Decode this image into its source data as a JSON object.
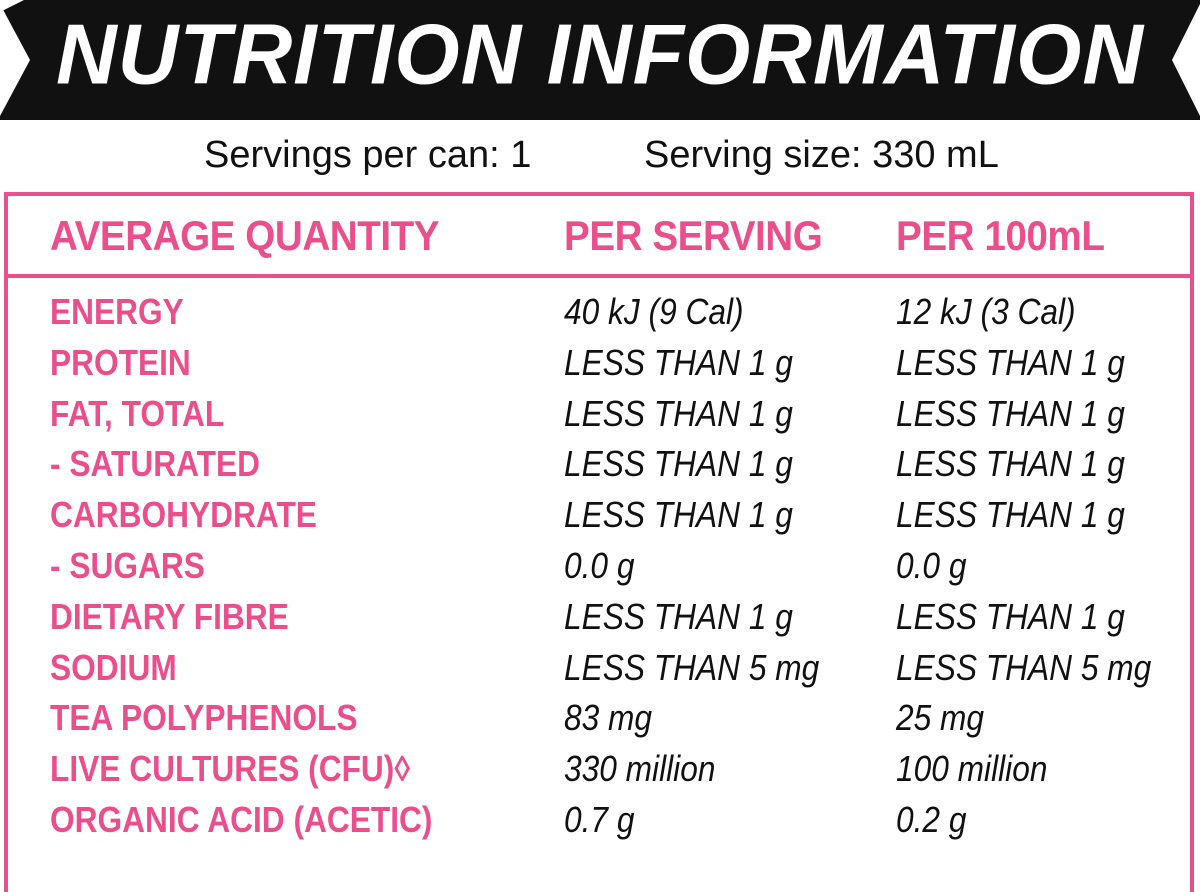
{
  "header": {
    "title": "NUTRITION INFORMATION"
  },
  "servings": {
    "per_pack": "Servings per can: 1",
    "size": "Serving size: 330 mL"
  },
  "colors": {
    "accent": "#ea4f8c",
    "banner": "#111111",
    "text": "#111111"
  },
  "table": {
    "columns": [
      "AVERAGE QUANTITY",
      "PER SERVING",
      "PER 100mL"
    ],
    "rows": [
      {
        "nutrient": "ENERGY",
        "per_serving": "40 kJ (9 Cal)",
        "per_100ml": "12 kJ (3 Cal)"
      },
      {
        "nutrient": "PROTEIN",
        "per_serving": "LESS THAN 1 g",
        "per_100ml": "LESS THAN 1 g"
      },
      {
        "nutrient": "FAT, TOTAL",
        "per_serving": "LESS THAN 1 g",
        "per_100ml": "LESS THAN 1 g"
      },
      {
        "nutrient": "- SATURATED",
        "per_serving": "LESS THAN 1 g",
        "per_100ml": "LESS THAN 1 g"
      },
      {
        "nutrient": "CARBOHYDRATE",
        "per_serving": "LESS THAN 1 g",
        "per_100ml": "LESS THAN 1 g"
      },
      {
        "nutrient": "- SUGARS",
        "per_serving": "0.0 g",
        "per_100ml": "0.0 g"
      },
      {
        "nutrient": "DIETARY FIBRE",
        "per_serving": "LESS THAN 1 g",
        "per_100ml": "LESS THAN 1 g"
      },
      {
        "nutrient": "SODIUM",
        "per_serving": "LESS THAN 5 mg",
        "per_100ml": "LESS THAN 5 mg"
      },
      {
        "nutrient": "TEA POLYPHENOLS",
        "per_serving": "83 mg",
        "per_100ml": "25 mg"
      },
      {
        "nutrient": "LIVE CULTURES (CFU)◊",
        "per_serving": "330 million",
        "per_100ml": "100 million"
      },
      {
        "nutrient": "ORGANIC ACID (ACETIC)",
        "per_serving": "0.7 g",
        "per_100ml": "0.2 g"
      }
    ]
  }
}
